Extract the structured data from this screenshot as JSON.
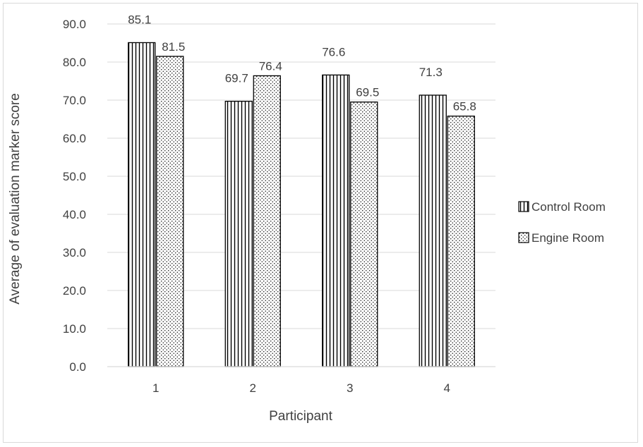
{
  "chart_data": {
    "type": "bar",
    "categories": [
      "1",
      "2",
      "3",
      "4"
    ],
    "series": [
      {
        "name": "Control Room",
        "values": [
          85.1,
          69.7,
          76.6,
          71.3
        ],
        "pattern": "vertical-lines"
      },
      {
        "name": "Engine Room",
        "values": [
          81.5,
          76.4,
          69.5,
          65.8
        ],
        "pattern": "dots"
      }
    ],
    "data_labels": [
      [
        "85.1",
        "69.7",
        "76.6",
        "71.3"
      ],
      [
        "81.5",
        "76.4",
        "69.5",
        "65.8"
      ]
    ],
    "title": "",
    "xlabel": "Participant",
    "ylabel": "Average of evaluation marker score",
    "ylim": [
      0,
      90
    ],
    "yticks": [
      "0.0",
      "10.0",
      "20.0",
      "30.0",
      "40.0",
      "50.0",
      "60.0",
      "70.0",
      "80.0",
      "90.0"
    ],
    "grid": true,
    "legend_position": "right",
    "colors": {
      "bar_stroke": "#000000",
      "grid": "#d9d9d9",
      "text": "#404040"
    }
  }
}
